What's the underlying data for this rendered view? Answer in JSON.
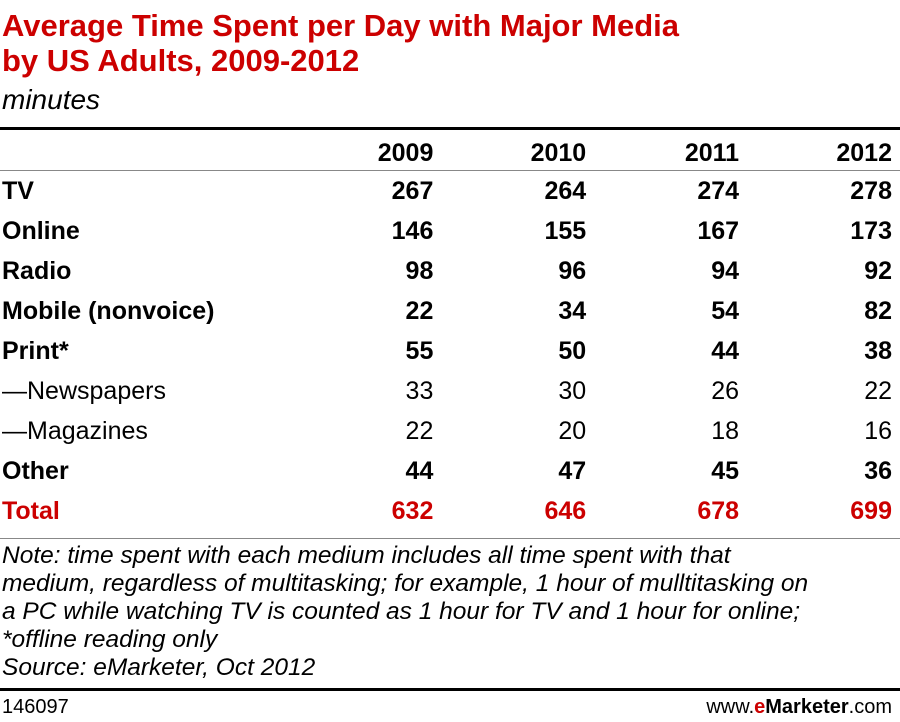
{
  "header": {
    "title_line1": "Average Time Spent per Day with Major Media",
    "title_line2": "by US Adults, 2009-2012",
    "subtitle": "minutes"
  },
  "chart_data": {
    "type": "table",
    "title": "Average Time Spent per Day with Major Media by US Adults, 2009-2012",
    "subtitle": "minutes",
    "columns": [
      "2009",
      "2010",
      "2011",
      "2012"
    ],
    "rows": [
      {
        "label": "TV",
        "values": [
          "267",
          "264",
          "274",
          "278"
        ],
        "style": "bold"
      },
      {
        "label": "Online",
        "values": [
          "146",
          "155",
          "167",
          "173"
        ],
        "style": "bold"
      },
      {
        "label": "Radio",
        "values": [
          "98",
          "96",
          "94",
          "92"
        ],
        "style": "bold"
      },
      {
        "label": "Mobile (nonvoice)",
        "values": [
          "22",
          "34",
          "54",
          "82"
        ],
        "style": "bold"
      },
      {
        "label": "Print*",
        "values": [
          "55",
          "50",
          "44",
          "38"
        ],
        "style": "bold"
      },
      {
        "label": "—Newspapers",
        "values": [
          "33",
          "30",
          "26",
          "22"
        ],
        "style": "normal"
      },
      {
        "label": "—Magazines",
        "values": [
          "22",
          "20",
          "18",
          "16"
        ],
        "style": "normal"
      },
      {
        "label": "Other",
        "values": [
          "44",
          "47",
          "45",
          "36"
        ],
        "style": "bold"
      },
      {
        "label": "Total",
        "values": [
          "632",
          "646",
          "678",
          "699"
        ],
        "style": "total"
      }
    ]
  },
  "note": {
    "line1": "Note: time spent with each medium includes all time spent with that",
    "line2": "medium, regardless of multitasking; for example, 1 hour of mulltitasking on",
    "line3": "a PC while watching TV is counted as 1 hour for TV and 1 hour for online;",
    "line4": "*offline reading only",
    "source": "Source: eMarketer, Oct 2012"
  },
  "footer": {
    "id": "146097",
    "brand_prefix": "www.",
    "brand_e": "e",
    "brand_name": "Marketer",
    "brand_suffix": ".com"
  },
  "colors": {
    "accent": "#cc0000",
    "text": "#000000"
  }
}
